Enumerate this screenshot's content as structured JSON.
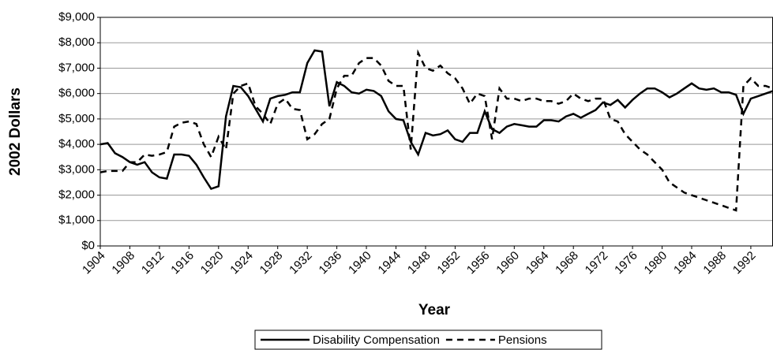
{
  "chart_data": {
    "type": "line",
    "x_label": "Year",
    "y_label": "2002 Dollars",
    "x": [
      1904,
      1905,
      1906,
      1907,
      1908,
      1909,
      1910,
      1911,
      1912,
      1913,
      1914,
      1915,
      1916,
      1917,
      1918,
      1919,
      1920,
      1921,
      1922,
      1923,
      1924,
      1925,
      1926,
      1927,
      1928,
      1929,
      1930,
      1931,
      1932,
      1933,
      1934,
      1935,
      1936,
      1937,
      1938,
      1939,
      1940,
      1941,
      1942,
      1943,
      1944,
      1945,
      1946,
      1947,
      1948,
      1949,
      1950,
      1951,
      1952,
      1953,
      1954,
      1955,
      1956,
      1957,
      1958,
      1959,
      1960,
      1961,
      1962,
      1963,
      1964,
      1965,
      1966,
      1967,
      1968,
      1969,
      1970,
      1971,
      1972,
      1973,
      1974,
      1975,
      1976,
      1977,
      1978,
      1979,
      1980,
      1981,
      1982,
      1983,
      1984,
      1985,
      1986,
      1987,
      1988,
      1989,
      1990,
      1991,
      1992,
      1993,
      1994,
      1995
    ],
    "series": [
      {
        "name": "Disability Compensation",
        "color": "#000000",
        "dash": "solid",
        "values": [
          4000,
          4050,
          3650,
          3500,
          3300,
          3200,
          3300,
          2900,
          2700,
          2650,
          3600,
          3600,
          3550,
          3200,
          2700,
          2250,
          2350,
          5100,
          6300,
          6250,
          5900,
          5400,
          4900,
          5800,
          5900,
          5950,
          6050,
          6050,
          7200,
          7700,
          7650,
          5500,
          6450,
          6300,
          6050,
          6000,
          6150,
          6100,
          5900,
          5300,
          5000,
          4950,
          4100,
          3600,
          4450,
          4350,
          4400,
          4550,
          4200,
          4100,
          4450,
          4450,
          5300,
          4600,
          4450,
          4700,
          4800,
          4750,
          4700,
          4700,
          4950,
          4950,
          4900,
          5100,
          5200,
          5050,
          5200,
          5350,
          5650,
          5550,
          5750,
          5450,
          5750,
          6000,
          6200,
          6200,
          6050,
          5850,
          6000,
          6200,
          6400,
          6200,
          6150,
          6200,
          6050,
          6050,
          5950,
          5200,
          5800,
          5900,
          6000,
          6100
        ]
      },
      {
        "name": "Pensions",
        "color": "#000000",
        "dash": "dashed",
        "values": [
          2900,
          2950,
          2950,
          2950,
          3300,
          3300,
          3600,
          3550,
          3600,
          3700,
          4700,
          4850,
          4900,
          4800,
          4000,
          3500,
          4300,
          3800,
          6000,
          6300,
          6400,
          5500,
          5200,
          4800,
          5600,
          5800,
          5400,
          5350,
          4200,
          4400,
          4800,
          5000,
          6200,
          6700,
          6700,
          7200,
          7400,
          7400,
          7100,
          6500,
          6300,
          6300,
          3800,
          7600,
          7000,
          6900,
          7100,
          6800,
          6600,
          6200,
          5600,
          6000,
          5900,
          4200,
          6200,
          5800,
          5800,
          5700,
          5800,
          5800,
          5700,
          5700,
          5600,
          5700,
          6000,
          5800,
          5700,
          5800,
          5800,
          5000,
          4900,
          4400,
          4100,
          3800,
          3600,
          3300,
          3000,
          2500,
          2300,
          2100,
          2000,
          1900,
          1800,
          1700,
          1600,
          1500,
          1400,
          6300,
          6600,
          6300,
          6300,
          6200
        ]
      }
    ],
    "xlim": [
      1904,
      1995
    ],
    "xticks": [
      1904,
      1908,
      1912,
      1916,
      1920,
      1924,
      1928,
      1932,
      1936,
      1940,
      1944,
      1948,
      1952,
      1956,
      1960,
      1964,
      1968,
      1972,
      1976,
      1980,
      1984,
      1988,
      1992
    ],
    "ylim": [
      0,
      9000
    ],
    "yticks": [
      {
        "value": 0,
        "label": "$0"
      },
      {
        "value": 1000,
        "label": "$1,000"
      },
      {
        "value": 2000,
        "label": "$2,000"
      },
      {
        "value": 3000,
        "label": "$3,000"
      },
      {
        "value": 4000,
        "label": "$4,000"
      },
      {
        "value": 5000,
        "label": "$5,000"
      },
      {
        "value": 6000,
        "label": "$6,000"
      },
      {
        "value": 7000,
        "label": "$7,000"
      },
      {
        "value": 8000,
        "label": "$8,000"
      },
      {
        "value": 9000,
        "label": "$9,000"
      }
    ],
    "grid": true,
    "legend": "bottom"
  }
}
